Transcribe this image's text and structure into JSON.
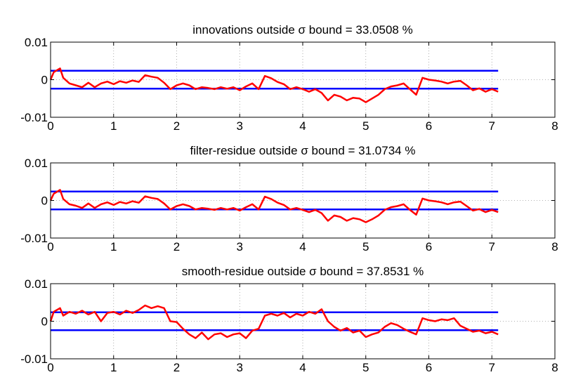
{
  "chart_data": [
    {
      "type": "line",
      "title": "innovations outside σ bound = 33.0508 %",
      "xlabel": "",
      "ylabel": "",
      "xlim": [
        0,
        8
      ],
      "ylim": [
        -0.01,
        0.01
      ],
      "xticks": [
        "0",
        "1",
        "2",
        "3",
        "4",
        "5",
        "6",
        "7",
        "8"
      ],
      "yticks": [
        "0.01",
        "0",
        "-0.01"
      ],
      "grid": "dotted",
      "series": [
        {
          "color": "#0000ff",
          "x": [
            0,
            7.1
          ],
          "y": [
            0.0024,
            0.0024
          ]
        },
        {
          "color": "#0000ff",
          "x": [
            0,
            7.1
          ],
          "y": [
            -0.0024,
            -0.0024
          ]
        },
        {
          "color": "#ff0000",
          "x": [
            0,
            0.05,
            0.1,
            0.15,
            0.2,
            0.3,
            0.4,
            0.5,
            0.6,
            0.7,
            0.8,
            0.9,
            1.0,
            1.1,
            1.2,
            1.3,
            1.4,
            1.5,
            1.6,
            1.7,
            1.8,
            1.9,
            2.0,
            2.1,
            2.2,
            2.3,
            2.4,
            2.5,
            2.6,
            2.7,
            2.8,
            2.9,
            3.0,
            3.1,
            3.2,
            3.3,
            3.4,
            3.5,
            3.6,
            3.7,
            3.8,
            3.9,
            4.0,
            4.1,
            4.2,
            4.3,
            4.4,
            4.5,
            4.6,
            4.7,
            4.8,
            4.9,
            5.0,
            5.1,
            5.2,
            5.3,
            5.4,
            5.5,
            5.6,
            5.7,
            5.8,
            5.9,
            6.0,
            6.1,
            6.2,
            6.3,
            6.4,
            6.5,
            6.6,
            6.7,
            6.8,
            6.9,
            7.0,
            7.1
          ],
          "y": [
            0.0,
            0.002,
            0.0025,
            0.003,
            0.0005,
            -0.001,
            -0.0015,
            -0.002,
            -0.0008,
            -0.002,
            -0.001,
            -0.0005,
            -0.0012,
            -0.0004,
            -0.0008,
            -0.0002,
            -0.0006,
            0.0012,
            0.0008,
            0.0005,
            -0.0008,
            -0.0025,
            -0.0015,
            -0.001,
            -0.0015,
            -0.0025,
            -0.002,
            -0.0022,
            -0.0025,
            -0.002,
            -0.0024,
            -0.002,
            -0.0028,
            -0.0018,
            -0.001,
            -0.0025,
            0.001,
            0.0004,
            -0.0006,
            -0.0012,
            -0.0025,
            -0.002,
            -0.0025,
            -0.0032,
            -0.0025,
            -0.0035,
            -0.0055,
            -0.004,
            -0.0045,
            -0.0055,
            -0.0048,
            -0.005,
            -0.006,
            -0.005,
            -0.004,
            -0.0025,
            -0.0018,
            -0.0015,
            -0.001,
            -0.0025,
            -0.004,
            0.0005,
            0.0,
            -0.0002,
            -0.0005,
            -0.001,
            -0.0005,
            -0.0003,
            -0.0015,
            -0.0028,
            -0.0023,
            -0.0032,
            -0.0025,
            -0.0032
          ]
        }
      ]
    },
    {
      "type": "line",
      "title": "filter-residue outside σ bound = 31.0734 %",
      "xlabel": "",
      "ylabel": "",
      "xlim": [
        0,
        8
      ],
      "ylim": [
        -0.01,
        0.01
      ],
      "xticks": [
        "0",
        "1",
        "2",
        "3",
        "4",
        "5",
        "6",
        "7",
        "8"
      ],
      "yticks": [
        "0.01",
        "0",
        "-0.01"
      ],
      "grid": "dotted",
      "series": [
        {
          "color": "#0000ff",
          "x": [
            0,
            7.1
          ],
          "y": [
            0.0024,
            0.0024
          ]
        },
        {
          "color": "#0000ff",
          "x": [
            0,
            7.1
          ],
          "y": [
            -0.0024,
            -0.0024
          ]
        },
        {
          "color": "#ff0000",
          "x": [
            0,
            0.05,
            0.1,
            0.15,
            0.2,
            0.3,
            0.4,
            0.5,
            0.6,
            0.7,
            0.8,
            0.9,
            1.0,
            1.1,
            1.2,
            1.3,
            1.4,
            1.5,
            1.6,
            1.7,
            1.8,
            1.9,
            2.0,
            2.1,
            2.2,
            2.3,
            2.4,
            2.5,
            2.6,
            2.7,
            2.8,
            2.9,
            3.0,
            3.1,
            3.2,
            3.3,
            3.4,
            3.5,
            3.6,
            3.7,
            3.8,
            3.9,
            4.0,
            4.1,
            4.2,
            4.3,
            4.4,
            4.5,
            4.6,
            4.7,
            4.8,
            4.9,
            5.0,
            5.1,
            5.2,
            5.3,
            5.4,
            5.5,
            5.6,
            5.7,
            5.8,
            5.9,
            6.0,
            6.1,
            6.2,
            6.3,
            6.4,
            6.5,
            6.6,
            6.7,
            6.8,
            6.9,
            7.0,
            7.1
          ],
          "y": [
            0.0,
            0.0018,
            0.0023,
            0.0028,
            0.0004,
            -0.001,
            -0.0014,
            -0.002,
            -0.0008,
            -0.002,
            -0.001,
            -0.0005,
            -0.0012,
            -0.0004,
            -0.0008,
            -0.0002,
            -0.0006,
            0.0011,
            0.0007,
            0.0004,
            -0.0008,
            -0.0024,
            -0.0015,
            -0.001,
            -0.0015,
            -0.0024,
            -0.002,
            -0.0022,
            -0.0025,
            -0.002,
            -0.0024,
            -0.002,
            -0.0027,
            -0.0018,
            -0.001,
            -0.0024,
            0.001,
            0.0004,
            -0.0006,
            -0.0012,
            -0.0024,
            -0.002,
            -0.0025,
            -0.0031,
            -0.0025,
            -0.0034,
            -0.0054,
            -0.004,
            -0.0044,
            -0.0054,
            -0.0047,
            -0.005,
            -0.0058,
            -0.005,
            -0.004,
            -0.0025,
            -0.0018,
            -0.0015,
            -0.001,
            -0.0025,
            -0.0038,
            0.0005,
            0.0,
            -0.0002,
            -0.0005,
            -0.001,
            -0.0005,
            -0.0003,
            -0.0015,
            -0.0027,
            -0.0023,
            -0.0031,
            -0.0025,
            -0.0031
          ]
        }
      ]
    },
    {
      "type": "line",
      "title": "smooth-residue outside σ bound = 37.8531 %",
      "xlabel": "",
      "ylabel": "",
      "xlim": [
        0,
        8
      ],
      "ylim": [
        -0.01,
        0.01
      ],
      "xticks": [
        "0",
        "1",
        "2",
        "3",
        "4",
        "5",
        "6",
        "7",
        "8"
      ],
      "yticks": [
        "0.01",
        "0",
        "-0.01"
      ],
      "grid": "dotted",
      "series": [
        {
          "color": "#0000ff",
          "x": [
            0,
            7.1
          ],
          "y": [
            0.0024,
            0.0024
          ]
        },
        {
          "color": "#0000ff",
          "x": [
            0,
            7.1
          ],
          "y": [
            -0.0024,
            -0.0024
          ]
        },
        {
          "color": "#ff0000",
          "x": [
            0,
            0.05,
            0.1,
            0.15,
            0.2,
            0.3,
            0.4,
            0.5,
            0.6,
            0.7,
            0.8,
            0.9,
            1.0,
            1.1,
            1.2,
            1.3,
            1.4,
            1.5,
            1.6,
            1.7,
            1.8,
            1.9,
            2.0,
            2.1,
            2.2,
            2.3,
            2.4,
            2.5,
            2.6,
            2.7,
            2.8,
            2.9,
            3.0,
            3.1,
            3.2,
            3.3,
            3.4,
            3.5,
            3.6,
            3.7,
            3.8,
            3.9,
            4.0,
            4.1,
            4.2,
            4.3,
            4.4,
            4.5,
            4.6,
            4.7,
            4.8,
            4.9,
            5.0,
            5.1,
            5.2,
            5.3,
            5.4,
            5.5,
            5.6,
            5.7,
            5.8,
            5.9,
            6.0,
            6.1,
            6.2,
            6.3,
            6.4,
            6.5,
            6.6,
            6.7,
            6.8,
            6.9,
            7.0,
            7.1
          ],
          "y": [
            0.0,
            0.0025,
            0.003,
            0.0035,
            0.0015,
            0.0025,
            0.002,
            0.0028,
            0.0018,
            0.0025,
            0.0,
            0.0022,
            0.0025,
            0.0018,
            0.0028,
            0.0022,
            0.003,
            0.0042,
            0.0035,
            0.004,
            0.0035,
            0.0,
            -0.0002,
            -0.002,
            -0.0035,
            -0.0045,
            -0.003,
            -0.0048,
            -0.0035,
            -0.0032,
            -0.0042,
            -0.0035,
            -0.0032,
            -0.0045,
            -0.0025,
            -0.002,
            0.0015,
            0.002,
            0.0015,
            0.0022,
            0.001,
            0.002,
            0.0015,
            0.0025,
            0.002,
            0.0032,
            0.0,
            -0.0015,
            -0.0025,
            -0.0018,
            -0.003,
            -0.0025,
            -0.0042,
            -0.0035,
            -0.003,
            -0.0015,
            -0.0005,
            -0.001,
            -0.002,
            -0.0028,
            -0.0035,
            0.0008,
            0.0003,
            0.0,
            0.0005,
            0.0003,
            0.0008,
            -0.0012,
            -0.002,
            -0.0028,
            -0.0025,
            -0.0032,
            -0.0028,
            -0.0035
          ]
        }
      ]
    }
  ]
}
